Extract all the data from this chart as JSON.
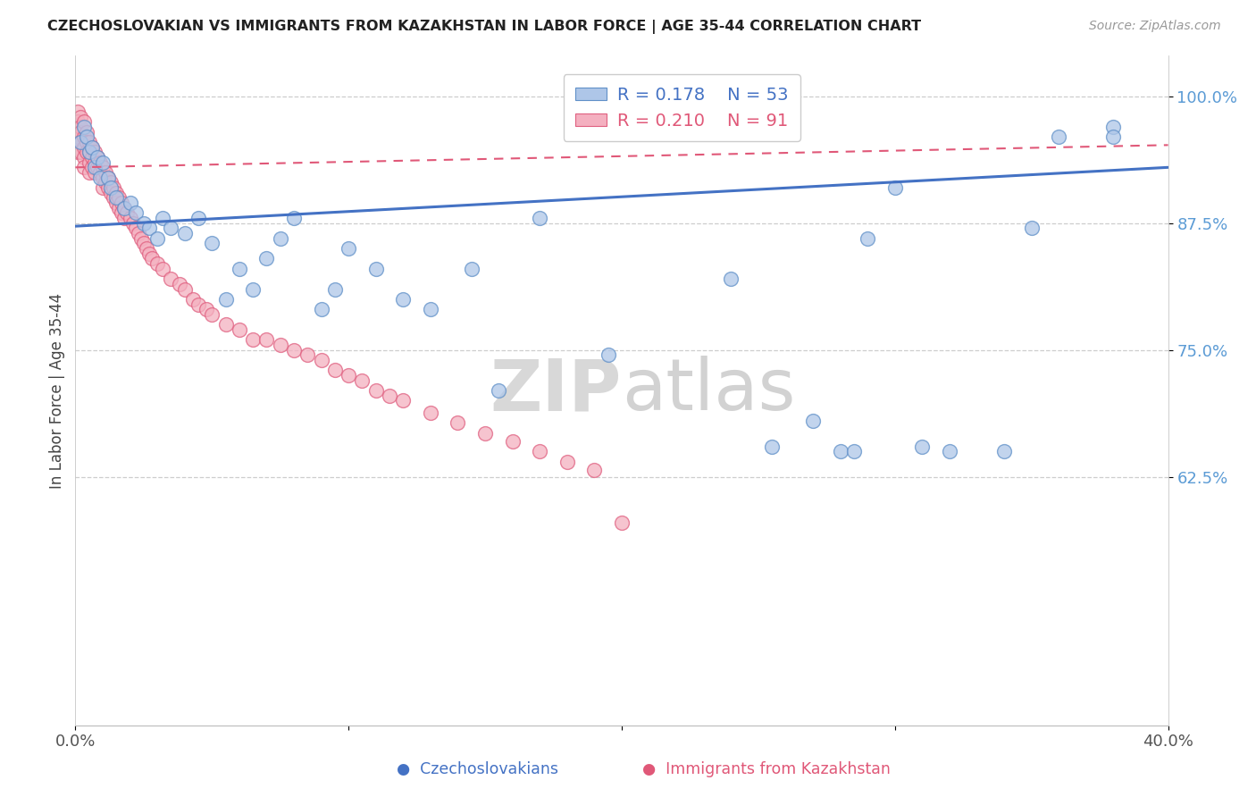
{
  "title": "CZECHOSLOVAKIAN VS IMMIGRANTS FROM KAZAKHSTAN IN LABOR FORCE | AGE 35-44 CORRELATION CHART",
  "source": "Source: ZipAtlas.com",
  "ylabel": "In Labor Force | Age 35-44",
  "xmin": 0.0,
  "xmax": 0.4,
  "ymin": 0.38,
  "ymax": 1.04,
  "yticks": [
    0.625,
    0.75,
    0.875,
    1.0
  ],
  "ytick_labels": [
    "62.5%",
    "75.0%",
    "87.5%",
    "100.0%"
  ],
  "blue_R": 0.178,
  "blue_N": 53,
  "pink_R": 0.21,
  "pink_N": 91,
  "blue_color": "#aec6e8",
  "blue_edge_color": "#6090c8",
  "blue_line_color": "#4472c4",
  "pink_color": "#f4b0c0",
  "pink_edge_color": "#e06080",
  "pink_line_color": "#e05878",
  "tick_label_color": "#5b9bd5",
  "grid_color": "#c8c8c8",
  "background_color": "#ffffff",
  "blue_trend_x": [
    0.0,
    0.4
  ],
  "blue_trend_y": [
    0.872,
    0.93
  ],
  "pink_trend_x": [
    0.0,
    0.4
  ],
  "pink_trend_y": [
    0.93,
    0.952
  ],
  "blue_x": [
    0.002,
    0.003,
    0.004,
    0.005,
    0.006,
    0.007,
    0.008,
    0.009,
    0.01,
    0.012,
    0.013,
    0.015,
    0.018,
    0.02,
    0.022,
    0.025,
    0.027,
    0.03,
    0.032,
    0.035,
    0.04,
    0.045,
    0.05,
    0.055,
    0.06,
    0.065,
    0.07,
    0.075,
    0.08,
    0.09,
    0.095,
    0.1,
    0.11,
    0.12,
    0.13,
    0.145,
    0.155,
    0.17,
    0.195,
    0.24,
    0.255,
    0.27,
    0.28,
    0.285,
    0.29,
    0.3,
    0.31,
    0.32,
    0.34,
    0.35,
    0.36,
    0.38,
    0.38
  ],
  "blue_y": [
    0.955,
    0.97,
    0.96,
    0.945,
    0.95,
    0.93,
    0.94,
    0.92,
    0.935,
    0.92,
    0.91,
    0.9,
    0.89,
    0.895,
    0.885,
    0.875,
    0.87,
    0.86,
    0.88,
    0.87,
    0.865,
    0.88,
    0.855,
    0.8,
    0.83,
    0.81,
    0.84,
    0.86,
    0.88,
    0.79,
    0.81,
    0.85,
    0.83,
    0.8,
    0.79,
    0.83,
    0.71,
    0.88,
    0.745,
    0.82,
    0.655,
    0.68,
    0.65,
    0.65,
    0.86,
    0.91,
    0.655,
    0.65,
    0.65,
    0.87,
    0.96,
    0.97,
    0.96
  ],
  "pink_x": [
    0.001,
    0.001,
    0.001,
    0.001,
    0.002,
    0.002,
    0.002,
    0.002,
    0.002,
    0.003,
    0.003,
    0.003,
    0.003,
    0.003,
    0.004,
    0.004,
    0.004,
    0.005,
    0.005,
    0.005,
    0.005,
    0.006,
    0.006,
    0.006,
    0.007,
    0.007,
    0.007,
    0.008,
    0.008,
    0.009,
    0.009,
    0.01,
    0.01,
    0.01,
    0.011,
    0.011,
    0.012,
    0.012,
    0.013,
    0.013,
    0.014,
    0.014,
    0.015,
    0.015,
    0.016,
    0.016,
    0.017,
    0.017,
    0.018,
    0.018,
    0.019,
    0.02,
    0.021,
    0.022,
    0.023,
    0.024,
    0.025,
    0.026,
    0.027,
    0.028,
    0.03,
    0.032,
    0.035,
    0.038,
    0.04,
    0.043,
    0.045,
    0.048,
    0.05,
    0.055,
    0.06,
    0.065,
    0.07,
    0.075,
    0.08,
    0.085,
    0.09,
    0.095,
    0.1,
    0.105,
    0.11,
    0.115,
    0.12,
    0.13,
    0.14,
    0.15,
    0.16,
    0.17,
    0.18,
    0.19,
    0.2
  ],
  "pink_y": [
    0.985,
    0.975,
    0.96,
    0.945,
    0.98,
    0.97,
    0.965,
    0.955,
    0.945,
    0.975,
    0.96,
    0.95,
    0.94,
    0.93,
    0.965,
    0.955,
    0.945,
    0.955,
    0.945,
    0.935,
    0.925,
    0.95,
    0.94,
    0.93,
    0.945,
    0.935,
    0.925,
    0.94,
    0.93,
    0.935,
    0.925,
    0.93,
    0.92,
    0.91,
    0.925,
    0.915,
    0.92,
    0.91,
    0.915,
    0.905,
    0.91,
    0.9,
    0.905,
    0.895,
    0.9,
    0.89,
    0.895,
    0.885,
    0.89,
    0.88,
    0.885,
    0.88,
    0.875,
    0.87,
    0.865,
    0.86,
    0.855,
    0.85,
    0.845,
    0.84,
    0.835,
    0.83,
    0.82,
    0.815,
    0.81,
    0.8,
    0.795,
    0.79,
    0.785,
    0.775,
    0.77,
    0.76,
    0.76,
    0.755,
    0.75,
    0.745,
    0.74,
    0.73,
    0.725,
    0.72,
    0.71,
    0.705,
    0.7,
    0.688,
    0.678,
    0.668,
    0.66,
    0.65,
    0.64,
    0.632,
    0.58
  ]
}
